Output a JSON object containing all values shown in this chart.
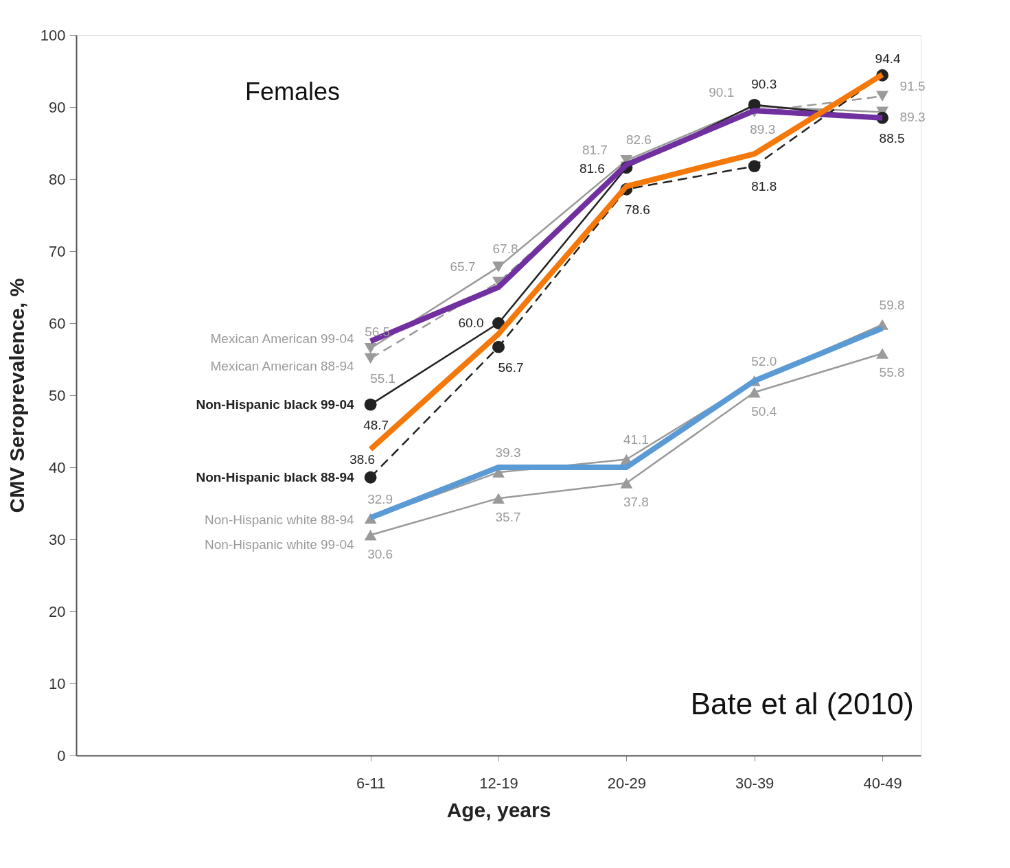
{
  "chart_data": {
    "type": "line",
    "xlabel": "Age, years",
    "ylabel": "CMV Seroprevalence, %",
    "categories": [
      null,
      null,
      "6-11",
      "12-19",
      "20-29",
      "30-39",
      "40-49"
    ],
    "ylim": [
      0,
      100
    ],
    "yticks": [
      0,
      10,
      20,
      30,
      40,
      50,
      60,
      70,
      80,
      90,
      100
    ],
    "grid": false,
    "annotations": [
      "Females",
      "Bate et al (2010)"
    ],
    "series": [
      {
        "name": "Mexican American 99-04",
        "color": "#9a9a9a",
        "marker": "triangle-down",
        "line_style": "solid",
        "values": [
          null,
          null,
          56.5,
          67.8,
          82.6,
          90.1,
          89.3
        ],
        "value_labels": [
          null,
          null,
          "56.5",
          "67.8",
          "82.6",
          "90.1",
          "89.3"
        ]
      },
      {
        "name": "Mexican American 88-94",
        "color": "#9a9a9a",
        "marker": "triangle-down",
        "line_style": "dashed",
        "values": [
          null,
          null,
          55.1,
          65.7,
          81.7,
          89.3,
          91.5
        ],
        "value_labels": [
          null,
          null,
          "55.1",
          "65.7",
          "81.7",
          "89.3",
          "91.5"
        ]
      },
      {
        "name": "Non-Hispanic black 99-04",
        "color": "#222222",
        "marker": "circle",
        "line_style": "solid",
        "values": [
          null,
          null,
          48.7,
          60.0,
          81.6,
          90.3,
          88.5
        ],
        "value_labels": [
          null,
          null,
          "48.7",
          "60.0",
          "81.6",
          "90.3",
          "88.5"
        ]
      },
      {
        "name": "Non-Hispanic black 88-94",
        "color": "#222222",
        "marker": "circle",
        "line_style": "dashed",
        "values": [
          null,
          null,
          38.6,
          56.7,
          78.6,
          81.8,
          94.4
        ],
        "value_labels": [
          null,
          null,
          "38.6",
          "56.7",
          "78.6",
          "81.8",
          "94.4"
        ]
      },
      {
        "name": "Non-Hispanic white 88-94",
        "color": "#9a9a9a",
        "marker": "triangle-up",
        "line_style": "solid",
        "values": [
          null,
          null,
          32.9,
          39.3,
          41.1,
          52.0,
          59.8
        ],
        "value_labels": [
          null,
          null,
          "32.9",
          "39.3",
          "41.1",
          "52.0",
          "59.8"
        ]
      },
      {
        "name": "Non-Hispanic white 99-04",
        "color": "#9a9a9a",
        "marker": "triangle-up",
        "line_style": "solid",
        "values": [
          null,
          null,
          30.6,
          35.7,
          37.8,
          50.4,
          55.8
        ],
        "value_labels": [
          null,
          null,
          "30.6",
          "35.7",
          "37.8",
          "50.4",
          "55.8"
        ]
      },
      {
        "color": "#7030a0",
        "marker": "none",
        "line_style": "solid",
        "values": [
          null,
          null,
          57.5,
          65.0,
          82.0,
          89.5,
          88.5
        ]
      },
      {
        "color": "#f5780a",
        "marker": "none",
        "line_style": "solid",
        "values": [
          null,
          null,
          42.5,
          58.5,
          79.0,
          83.5,
          94.5
        ]
      },
      {
        "color": "#5b9bd5",
        "marker": "none",
        "line_style": "solid",
        "values": [
          null,
          null,
          33.0,
          40.0,
          40.0,
          52.0,
          59.3
        ]
      }
    ]
  }
}
